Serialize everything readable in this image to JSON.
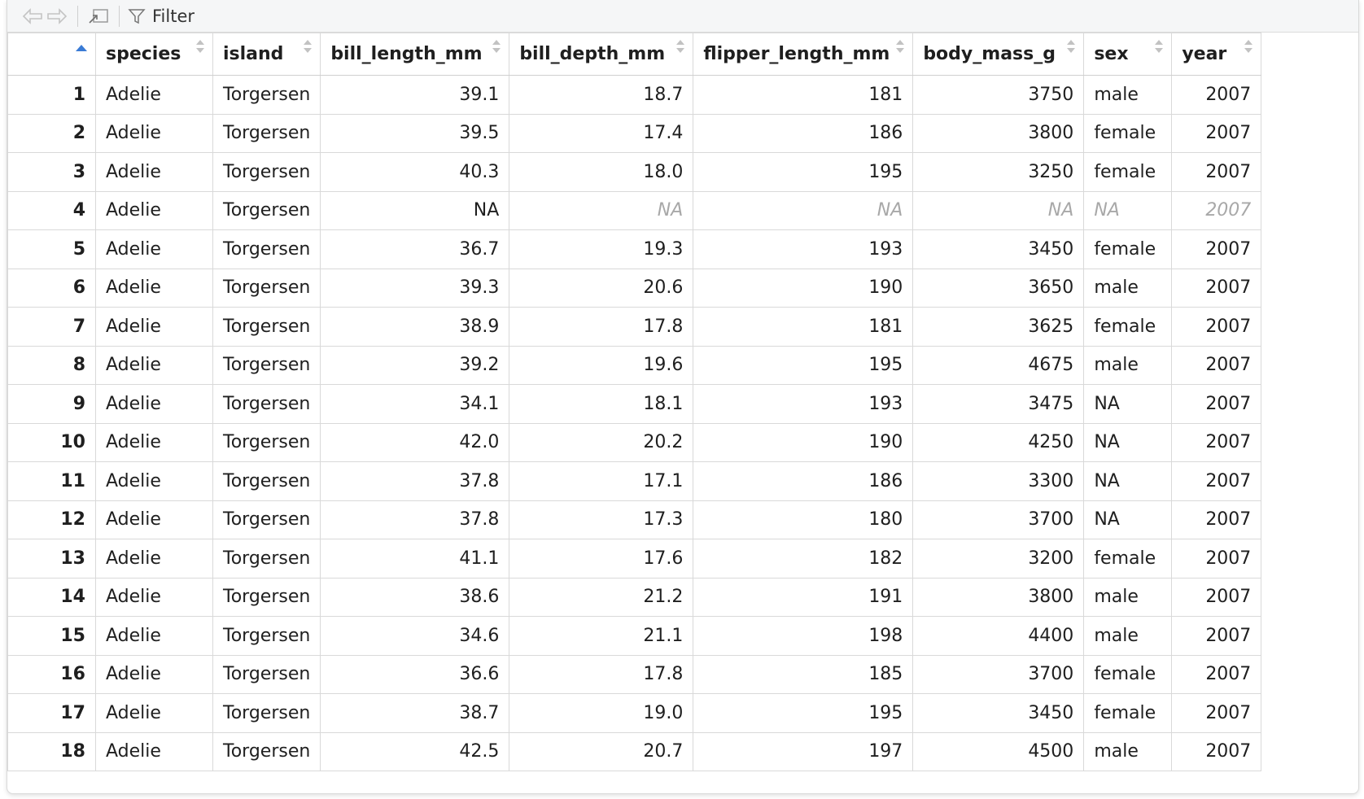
{
  "toolbar": {
    "filter_label": "Filter",
    "back_icon": "back-arrow-icon",
    "forward_icon": "forward-arrow-icon",
    "popout_icon": "popout-icon",
    "filter_icon": "funnel-icon"
  },
  "colors": {
    "sort_active": "#3a7bd5",
    "na_text": "#a8a8a8",
    "grid_border": "#d9d9d9"
  },
  "columns": [
    "species",
    "island",
    "bill_length_mm",
    "bill_depth_mm",
    "flipper_length_mm",
    "body_mass_g",
    "sex",
    "year"
  ],
  "rows": [
    [
      "1",
      "Adelie",
      "Torgersen",
      "39.1",
      "18.7",
      "181",
      "3750",
      "male",
      "2007"
    ],
    [
      "2",
      "Adelie",
      "Torgersen",
      "39.5",
      "17.4",
      "186",
      "3800",
      "female",
      "2007"
    ],
    [
      "3",
      "Adelie",
      "Torgersen",
      "40.3",
      "18.0",
      "195",
      "3250",
      "female",
      "2007"
    ],
    [
      "4",
      "Adelie",
      "Torgersen",
      "NA",
      "NA",
      "NA",
      "NA",
      "NA",
      "2007"
    ],
    [
      "5",
      "Adelie",
      "Torgersen",
      "36.7",
      "19.3",
      "193",
      "3450",
      "female",
      "2007"
    ],
    [
      "6",
      "Adelie",
      "Torgersen",
      "39.3",
      "20.6",
      "190",
      "3650",
      "male",
      "2007"
    ],
    [
      "7",
      "Adelie",
      "Torgersen",
      "38.9",
      "17.8",
      "181",
      "3625",
      "female",
      "2007"
    ],
    [
      "8",
      "Adelie",
      "Torgersen",
      "39.2",
      "19.6",
      "195",
      "4675",
      "male",
      "2007"
    ],
    [
      "9",
      "Adelie",
      "Torgersen",
      "34.1",
      "18.1",
      "193",
      "3475",
      "NA",
      "2007"
    ],
    [
      "10",
      "Adelie",
      "Torgersen",
      "42.0",
      "20.2",
      "190",
      "4250",
      "NA",
      "2007"
    ],
    [
      "11",
      "Adelie",
      "Torgersen",
      "37.8",
      "17.1",
      "186",
      "3300",
      "NA",
      "2007"
    ],
    [
      "12",
      "Adelie",
      "Torgersen",
      "37.8",
      "17.3",
      "180",
      "3700",
      "NA",
      "2007"
    ],
    [
      "13",
      "Adelie",
      "Torgersen",
      "41.1",
      "17.6",
      "182",
      "3200",
      "female",
      "2007"
    ],
    [
      "14",
      "Adelie",
      "Torgersen",
      "38.6",
      "21.2",
      "191",
      "3800",
      "male",
      "2007"
    ],
    [
      "15",
      "Adelie",
      "Torgersen",
      "34.6",
      "21.1",
      "198",
      "4400",
      "male",
      "2007"
    ],
    [
      "16",
      "Adelie",
      "Torgersen",
      "36.6",
      "17.8",
      "185",
      "3700",
      "female",
      "2007"
    ],
    [
      "17",
      "Adelie",
      "Torgersen",
      "38.7",
      "19.0",
      "195",
      "3450",
      "female",
      "2007"
    ],
    [
      "18",
      "Adelie",
      "Torgersen",
      "42.5",
      "20.7",
      "197",
      "4500",
      "male",
      "2007"
    ]
  ],
  "na_cells": [
    [
      3,
      3
    ],
    [
      3,
      4
    ],
    [
      3,
      5
    ],
    [
      3,
      6
    ],
    [
      3,
      7
    ]
  ]
}
